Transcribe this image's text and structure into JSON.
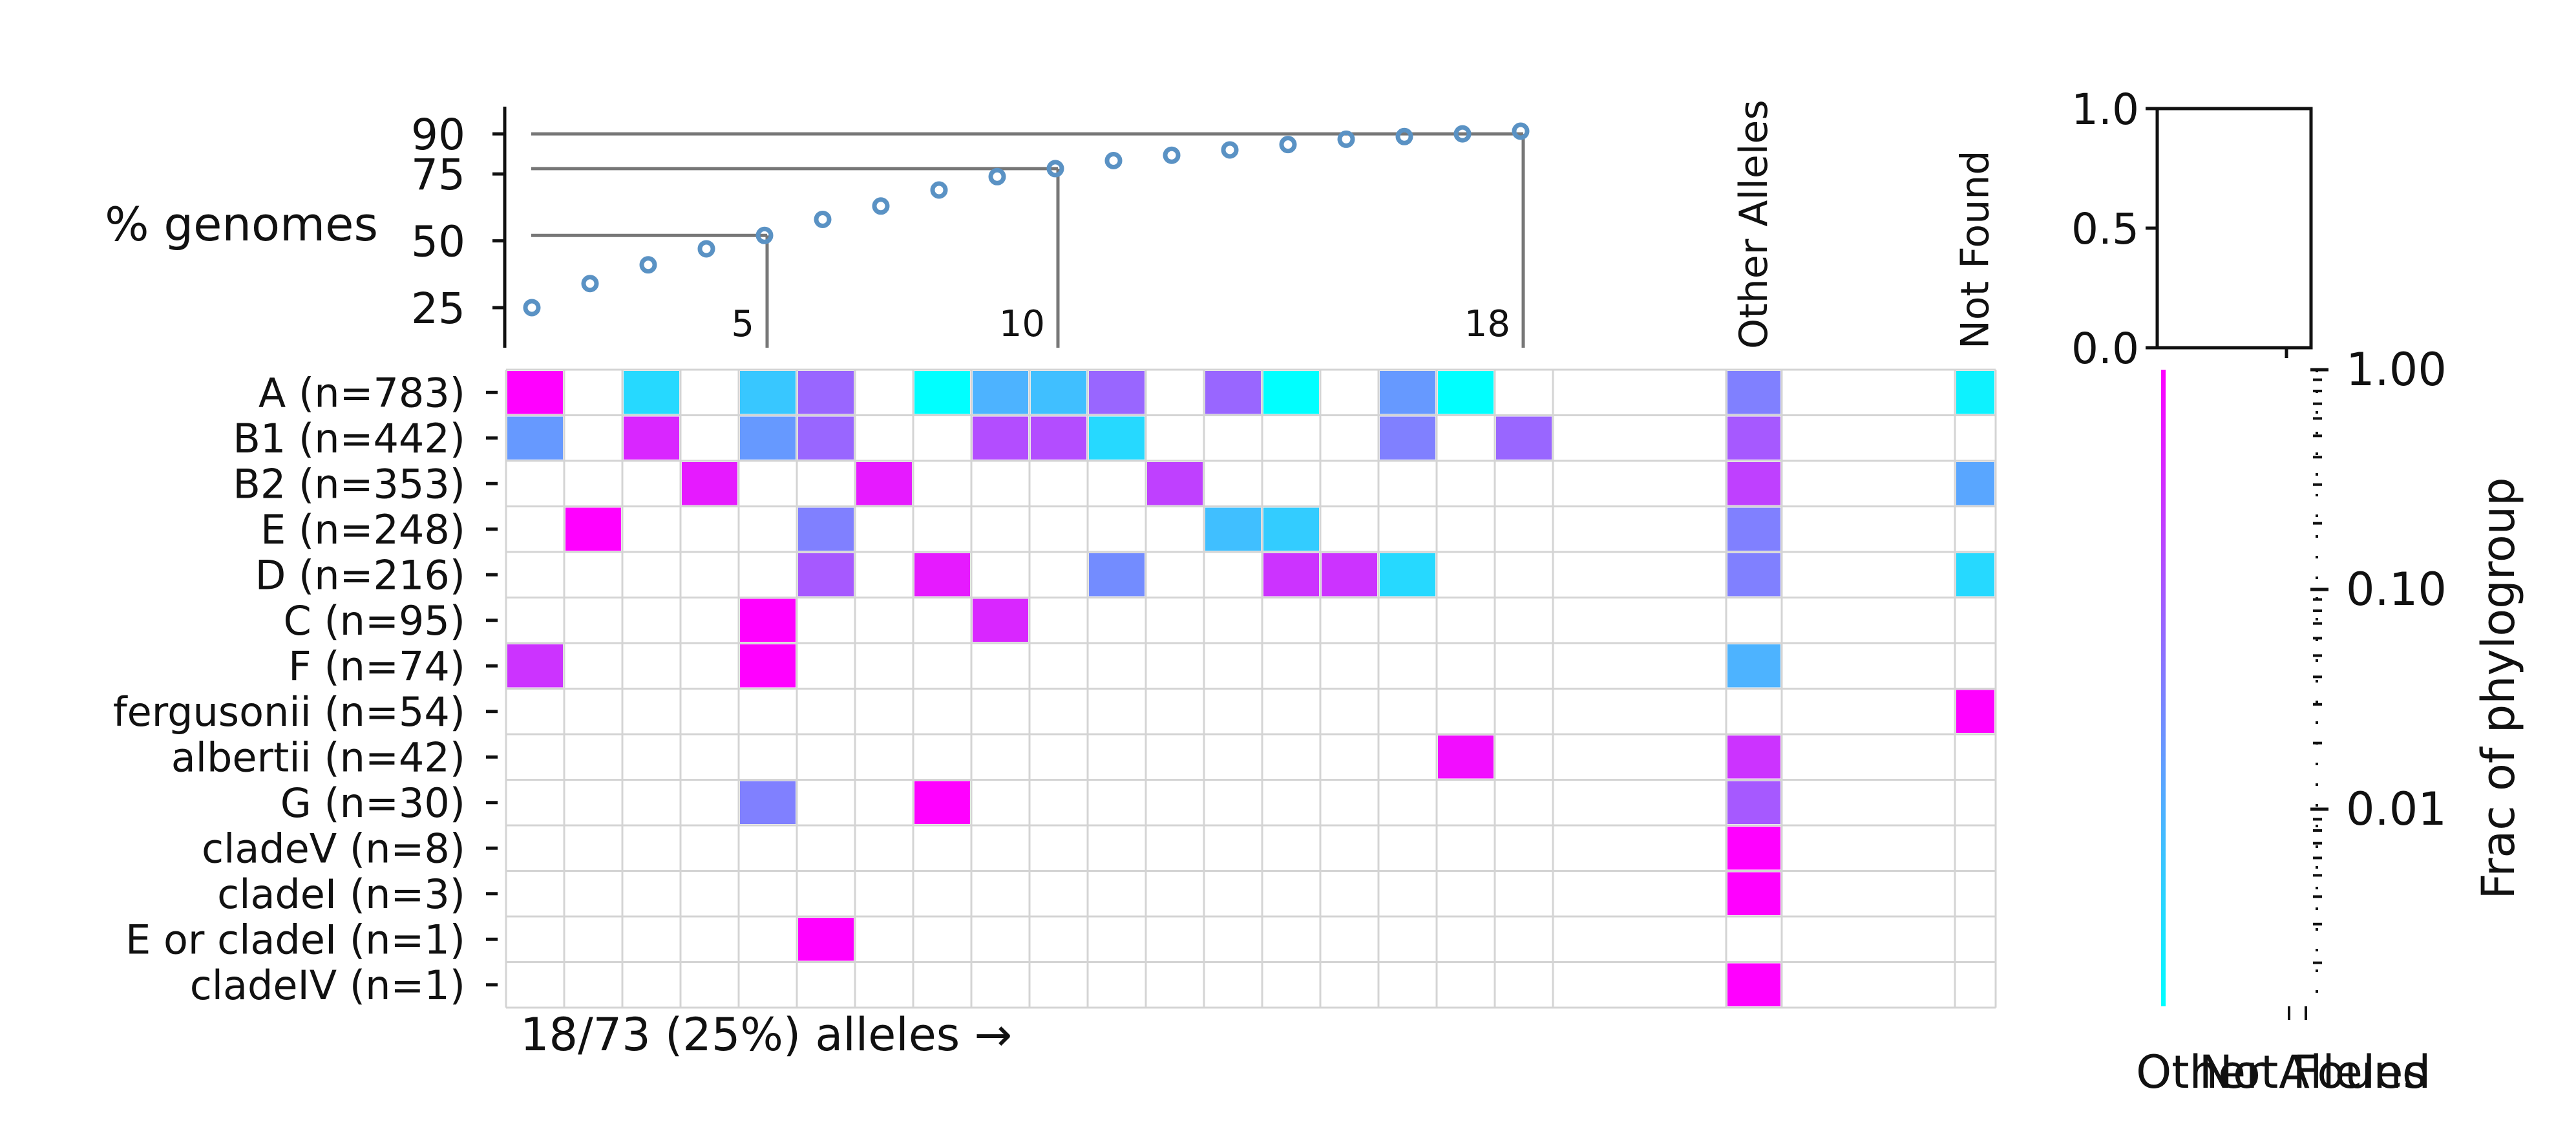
{
  "chart_data": {
    "type": "heatmap",
    "cumulative_plot": {
      "ylabel": "% genomes",
      "yticks": [
        25,
        50,
        75,
        90
      ],
      "points": [
        25,
        34,
        41,
        47,
        52,
        58,
        63,
        69,
        74,
        77,
        80,
        82,
        84,
        86,
        88,
        89,
        90,
        91
      ],
      "markers": [
        {
          "label": "5",
          "index": 5,
          "value": 50
        },
        {
          "label": "10",
          "index": 10,
          "value": 75
        },
        {
          "label": "18",
          "index": 18,
          "value": 90
        }
      ]
    },
    "rows": [
      "A (n=783)",
      "B1 (n=442)",
      "B2 (n=353)",
      "E (n=248)",
      "D (n=216)",
      "C (n=95)",
      "F (n=74)",
      "fergusonii (n=54)",
      "albertii (n=42)",
      "G (n=30)",
      "cladeV (n=8)",
      "cladeI (n=3)",
      "E or cladeI (n=1)",
      "cladeIV (n=1)"
    ],
    "n_allele_columns": 18,
    "cells": [
      [
        1.0,
        null,
        0.15,
        null,
        0.22,
        0.6,
        null,
        0.0,
        0.3,
        0.25,
        0.6,
        null,
        0.6,
        0.0,
        null,
        0.4,
        0.0,
        null
      ],
      [
        0.4,
        null,
        0.85,
        null,
        0.4,
        0.6,
        null,
        null,
        0.7,
        0.7,
        0.15,
        null,
        null,
        null,
        null,
        0.5,
        null,
        0.6
      ],
      [
        null,
        null,
        null,
        0.9,
        null,
        null,
        0.9,
        null,
        null,
        null,
        null,
        0.75,
        null,
        null,
        null,
        null,
        null,
        null
      ],
      [
        null,
        1.0,
        null,
        null,
        null,
        0.5,
        null,
        null,
        null,
        null,
        null,
        null,
        0.25,
        0.2,
        null,
        null,
        null,
        null
      ],
      [
        null,
        null,
        null,
        null,
        null,
        0.65,
        null,
        0.9,
        null,
        null,
        0.45,
        null,
        null,
        0.8,
        0.8,
        0.15,
        null,
        null
      ],
      [
        null,
        null,
        null,
        null,
        1.0,
        null,
        null,
        null,
        0.85,
        null,
        null,
        null,
        null,
        null,
        null,
        null,
        null,
        null
      ],
      [
        0.8,
        null,
        null,
        null,
        1.0,
        null,
        null,
        null,
        null,
        null,
        null,
        null,
        null,
        null,
        null,
        null,
        null,
        null
      ],
      [
        null,
        null,
        null,
        null,
        null,
        null,
        null,
        null,
        null,
        null,
        null,
        null,
        null,
        null,
        null,
        null,
        null,
        null
      ],
      [
        null,
        null,
        null,
        null,
        null,
        null,
        null,
        null,
        null,
        null,
        null,
        null,
        null,
        null,
        null,
        null,
        0.95,
        null
      ],
      [
        null,
        null,
        null,
        null,
        0.5,
        null,
        null,
        1.0,
        null,
        null,
        null,
        null,
        null,
        null,
        null,
        null,
        null,
        null
      ],
      [
        null,
        null,
        null,
        null,
        null,
        null,
        null,
        null,
        null,
        null,
        null,
        null,
        null,
        null,
        null,
        null,
        null,
        null
      ],
      [
        null,
        null,
        null,
        null,
        null,
        null,
        null,
        null,
        null,
        null,
        null,
        null,
        null,
        null,
        null,
        null,
        null,
        null
      ],
      [
        null,
        null,
        null,
        null,
        null,
        1.0,
        null,
        null,
        null,
        null,
        null,
        null,
        null,
        null,
        null,
        null,
        null,
        null
      ],
      [
        null,
        null,
        null,
        null,
        null,
        null,
        null,
        null,
        null,
        null,
        null,
        null,
        null,
        null,
        null,
        null,
        null,
        null
      ]
    ],
    "other_alleles": {
      "label": "Other Alleles",
      "values": [
        0.5,
        0.65,
        0.75,
        0.5,
        0.5,
        null,
        0.3,
        null,
        0.8,
        0.65,
        1.0,
        1.0,
        null,
        1.0
      ]
    },
    "not_found": {
      "label": "Not Found",
      "values": [
        0.05,
        null,
        0.35,
        null,
        0.15,
        null,
        null,
        1.0,
        null,
        null,
        null,
        null,
        null,
        null
      ]
    },
    "small_axes": {
      "yticks": [
        "0.0",
        "0.5",
        "1.0"
      ]
    },
    "colorbar": {
      "label": "Frac of phylogroup",
      "scale": "log",
      "ticks": [
        "0.01",
        "0.10",
        "1.00"
      ],
      "colors": [
        "#00ffff",
        "#ff00ff"
      ]
    },
    "bottom_labels": [
      "Other Alleles",
      "Not Found"
    ],
    "footer": "18/73 (25%) alleles →"
  }
}
